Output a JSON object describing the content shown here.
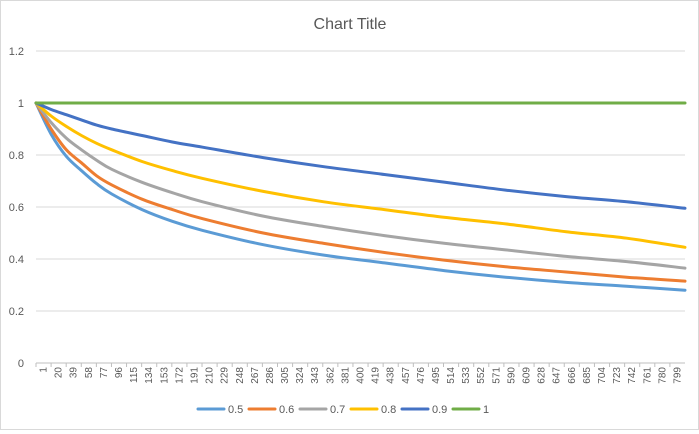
{
  "chart_data": {
    "type": "line",
    "title": "Chart Title",
    "xlabel": "",
    "ylabel": "",
    "ylim": [
      0,
      1.2
    ],
    "y_ticks": [
      0,
      0.2,
      0.4,
      0.6,
      0.8,
      1,
      1.2
    ],
    "y_tick_labels": [
      "0",
      "0.2",
      "0.4",
      "0.6",
      "0.8",
      "1",
      "1.2"
    ],
    "x_range": [
      1,
      815
    ],
    "x_tick_labels": [
      "1",
      "20",
      "39",
      "58",
      "77",
      "96",
      "115",
      "134",
      "153",
      "172",
      "191",
      "210",
      "229",
      "248",
      "267",
      "286",
      "305",
      "324",
      "343",
      "362",
      "381",
      "400",
      "419",
      "438",
      "457",
      "476",
      "495",
      "514",
      "533",
      "552",
      "571",
      "590",
      "609",
      "628",
      "647",
      "666",
      "685",
      "704",
      "723",
      "742",
      "761",
      "780",
      "799"
    ],
    "grid": "horizontal",
    "legend_position": "bottom",
    "series": [
      {
        "name": "0.5",
        "color": "#5b9bd5",
        "x": [
          1,
          20,
          39,
          58,
          77,
          96,
          134,
          172,
          210,
          286,
          362,
          438,
          514,
          590,
          666,
          742,
          815
        ],
        "y": [
          1,
          0.88,
          0.795,
          0.74,
          0.69,
          0.65,
          0.59,
          0.545,
          0.51,
          0.455,
          0.415,
          0.385,
          0.355,
          0.33,
          0.31,
          0.295,
          0.28
        ]
      },
      {
        "name": "0.6",
        "color": "#ed7d31",
        "x": [
          1,
          20,
          39,
          58,
          77,
          96,
          134,
          172,
          210,
          286,
          362,
          438,
          514,
          590,
          666,
          742,
          815
        ],
        "y": [
          1,
          0.9,
          0.82,
          0.77,
          0.72,
          0.685,
          0.63,
          0.59,
          0.555,
          0.5,
          0.46,
          0.425,
          0.395,
          0.37,
          0.35,
          0.33,
          0.315
        ]
      },
      {
        "name": "0.7",
        "color": "#a5a5a5",
        "x": [
          1,
          20,
          39,
          58,
          77,
          96,
          134,
          172,
          210,
          286,
          362,
          438,
          514,
          590,
          666,
          742,
          815
        ],
        "y": [
          1,
          0.925,
          0.865,
          0.82,
          0.78,
          0.745,
          0.695,
          0.655,
          0.62,
          0.565,
          0.525,
          0.49,
          0.46,
          0.435,
          0.41,
          0.39,
          0.365
        ]
      },
      {
        "name": "0.8",
        "color": "#ffc000",
        "x": [
          1,
          20,
          39,
          58,
          77,
          96,
          134,
          172,
          210,
          286,
          362,
          438,
          514,
          590,
          666,
          742,
          815
        ],
        "y": [
          1,
          0.95,
          0.91,
          0.875,
          0.845,
          0.82,
          0.775,
          0.74,
          0.71,
          0.66,
          0.62,
          0.59,
          0.56,
          0.535,
          0.505,
          0.48,
          0.445
        ]
      },
      {
        "name": "0.9",
        "color": "#4472c4",
        "x": [
          1,
          20,
          39,
          58,
          77,
          96,
          134,
          172,
          210,
          286,
          362,
          438,
          514,
          590,
          666,
          742,
          815
        ],
        "y": [
          1,
          0.975,
          0.955,
          0.935,
          0.915,
          0.9,
          0.875,
          0.85,
          0.83,
          0.79,
          0.755,
          0.725,
          0.695,
          0.665,
          0.64,
          0.62,
          0.595
        ]
      },
      {
        "name": "1",
        "color": "#70ad47",
        "x": [
          1,
          815
        ],
        "y": [
          1,
          1
        ]
      }
    ]
  }
}
